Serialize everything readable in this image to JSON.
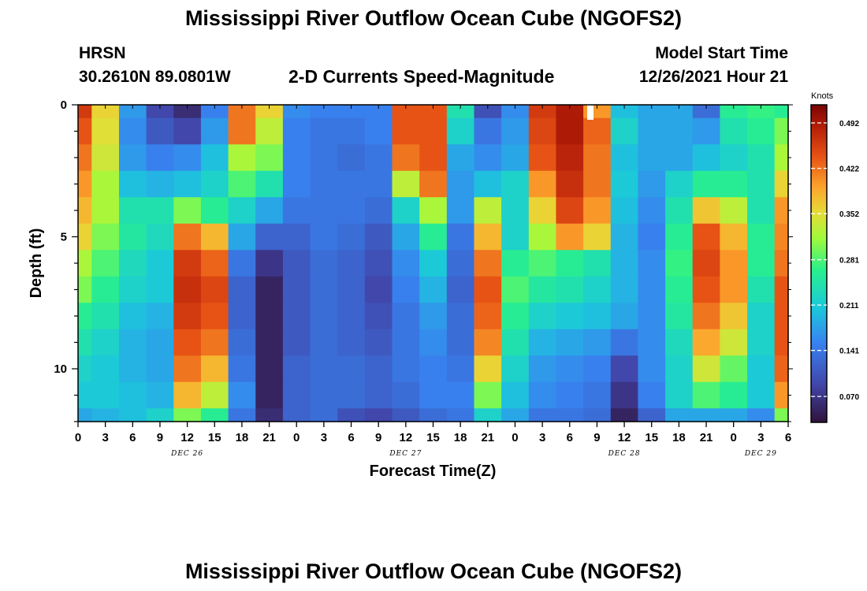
{
  "header": {
    "title": "Mississippi River Outflow Ocean Cube (NGOFS2)",
    "station": "HRSN",
    "coords": "30.2610N  89.0801W",
    "subtitle": "2-D Currents Speed-Magnitude",
    "model_start_label": "Model Start Time",
    "model_start_value": "12/26/2021 Hour 21",
    "repeated_title": "Mississippi River Outflow Ocean Cube (NGOFS2)"
  },
  "chart_data": {
    "type": "heatmap",
    "title": "2-D Currents Speed-Magnitude",
    "xlabel": "Forecast Time(Z)",
    "ylabel": "Depth (ft)",
    "colorbar_label": "Knots",
    "x_tick_labels": [
      "0",
      "3",
      "6",
      "9",
      "12",
      "15",
      "18",
      "21",
      "0",
      "3",
      "6",
      "9",
      "12",
      "15",
      "18",
      "21",
      "0",
      "3",
      "6",
      "9",
      "12",
      "15",
      "18",
      "21",
      "0",
      "3",
      "6"
    ],
    "day_labels": [
      {
        "text": "DEC 26",
        "tick_index": 4
      },
      {
        "text": "DEC 27",
        "tick_index": 12
      },
      {
        "text": "DEC 28",
        "tick_index": 20
      },
      {
        "text": "DEC 29",
        "tick_index": 25
      }
    ],
    "y_tick_labels": [
      "0",
      "5",
      "10"
    ],
    "ylim": [
      0,
      12
    ],
    "xlim_hours": [
      0,
      78
    ],
    "colorbar_ticks": [
      "0.492",
      "0.422",
      "0.352",
      "0.281",
      "0.211",
      "0.141",
      "0.070"
    ],
    "zlim": [
      0.03,
      0.52
    ],
    "time_hours": [
      0,
      3,
      6,
      9,
      12,
      15,
      18,
      21,
      24,
      27,
      30,
      33,
      36,
      39,
      42,
      45,
      48,
      51,
      54,
      57,
      60,
      63,
      66,
      69,
      72,
      75,
      78
    ],
    "depth_ft": [
      0,
      1,
      2,
      3,
      4,
      5,
      6,
      7,
      8,
      9,
      10,
      11,
      12
    ],
    "speed_knots": [
      [
        0.46,
        0.36,
        0.17,
        0.09,
        0.06,
        0.15,
        0.42,
        0.36,
        0.16,
        0.15,
        0.15,
        0.15,
        0.44,
        0.44,
        0.24,
        0.1,
        0.16,
        0.46,
        0.49,
        0.4,
        0.2,
        0.18,
        0.18,
        0.13,
        0.26,
        0.27,
        0.26
      ],
      [
        0.44,
        0.35,
        0.16,
        0.11,
        0.09,
        0.17,
        0.42,
        0.33,
        0.15,
        0.14,
        0.14,
        0.15,
        0.44,
        0.44,
        0.22,
        0.14,
        0.17,
        0.45,
        0.49,
        0.43,
        0.22,
        0.18,
        0.18,
        0.17,
        0.24,
        0.26,
        0.3
      ],
      [
        0.42,
        0.34,
        0.17,
        0.15,
        0.16,
        0.2,
        0.32,
        0.3,
        0.15,
        0.14,
        0.13,
        0.14,
        0.42,
        0.44,
        0.18,
        0.16,
        0.18,
        0.44,
        0.48,
        0.42,
        0.2,
        0.18,
        0.18,
        0.2,
        0.22,
        0.24,
        0.32
      ],
      [
        0.4,
        0.32,
        0.2,
        0.19,
        0.2,
        0.22,
        0.28,
        0.24,
        0.15,
        0.14,
        0.14,
        0.14,
        0.33,
        0.42,
        0.17,
        0.2,
        0.22,
        0.4,
        0.47,
        0.42,
        0.21,
        0.17,
        0.22,
        0.26,
        0.26,
        0.24,
        0.36
      ],
      [
        0.38,
        0.32,
        0.24,
        0.24,
        0.3,
        0.26,
        0.22,
        0.18,
        0.14,
        0.14,
        0.14,
        0.13,
        0.22,
        0.32,
        0.17,
        0.33,
        0.22,
        0.36,
        0.45,
        0.4,
        0.2,
        0.16,
        0.24,
        0.37,
        0.33,
        0.24,
        0.4
      ],
      [
        0.36,
        0.3,
        0.25,
        0.23,
        0.42,
        0.38,
        0.18,
        0.12,
        0.12,
        0.14,
        0.13,
        0.11,
        0.18,
        0.26,
        0.14,
        0.38,
        0.22,
        0.32,
        0.4,
        0.36,
        0.19,
        0.15,
        0.26,
        0.44,
        0.38,
        0.26,
        0.41
      ],
      [
        0.32,
        0.28,
        0.23,
        0.21,
        0.46,
        0.43,
        0.14,
        0.07,
        0.11,
        0.13,
        0.12,
        0.1,
        0.16,
        0.21,
        0.13,
        0.42,
        0.26,
        0.28,
        0.26,
        0.24,
        0.19,
        0.16,
        0.27,
        0.45,
        0.4,
        0.26,
        0.42
      ],
      [
        0.3,
        0.26,
        0.22,
        0.21,
        0.47,
        0.45,
        0.12,
        0.05,
        0.11,
        0.13,
        0.12,
        0.09,
        0.15,
        0.19,
        0.12,
        0.44,
        0.28,
        0.25,
        0.24,
        0.22,
        0.19,
        0.16,
        0.26,
        0.44,
        0.4,
        0.24,
        0.44
      ],
      [
        0.26,
        0.24,
        0.2,
        0.19,
        0.46,
        0.44,
        0.12,
        0.05,
        0.11,
        0.13,
        0.12,
        0.1,
        0.14,
        0.17,
        0.13,
        0.43,
        0.26,
        0.22,
        0.21,
        0.2,
        0.18,
        0.16,
        0.25,
        0.42,
        0.37,
        0.22,
        0.44
      ],
      [
        0.24,
        0.22,
        0.19,
        0.18,
        0.44,
        0.42,
        0.13,
        0.05,
        0.11,
        0.13,
        0.12,
        0.11,
        0.14,
        0.16,
        0.13,
        0.41,
        0.24,
        0.19,
        0.18,
        0.17,
        0.14,
        0.16,
        0.23,
        0.39,
        0.34,
        0.22,
        0.44
      ],
      [
        0.22,
        0.21,
        0.19,
        0.18,
        0.42,
        0.38,
        0.14,
        0.05,
        0.12,
        0.13,
        0.13,
        0.12,
        0.14,
        0.15,
        0.14,
        0.36,
        0.22,
        0.17,
        0.16,
        0.15,
        0.09,
        0.16,
        0.22,
        0.34,
        0.29,
        0.21,
        0.43
      ],
      [
        0.21,
        0.21,
        0.2,
        0.19,
        0.38,
        0.33,
        0.16,
        0.05,
        0.12,
        0.13,
        0.13,
        0.12,
        0.13,
        0.15,
        0.15,
        0.3,
        0.2,
        0.16,
        0.15,
        0.14,
        0.07,
        0.15,
        0.22,
        0.28,
        0.26,
        0.21,
        0.4
      ],
      [
        0.18,
        0.19,
        0.2,
        0.22,
        0.3,
        0.26,
        0.14,
        0.06,
        0.12,
        0.13,
        0.1,
        0.09,
        0.11,
        0.13,
        0.14,
        0.22,
        0.18,
        0.14,
        0.14,
        0.13,
        0.05,
        0.12,
        0.18,
        0.18,
        0.18,
        0.16,
        0.3
      ]
    ]
  }
}
